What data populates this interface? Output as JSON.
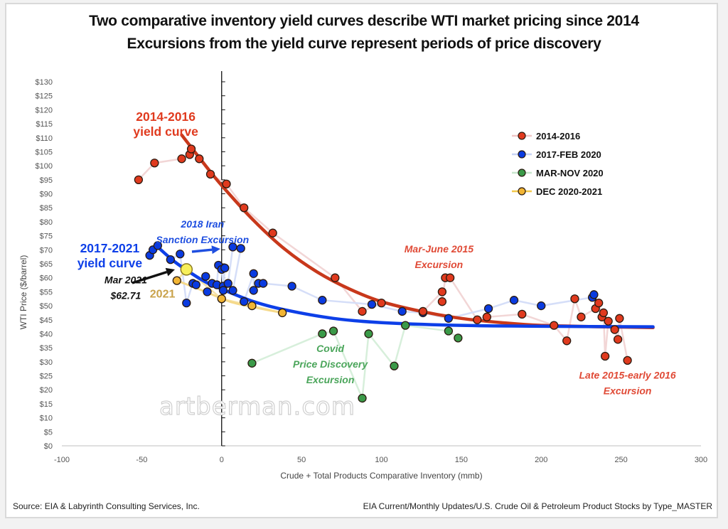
{
  "title": {
    "line1": "Two comparative inventory yield curves describe WTI market pricing since 2014",
    "line2": "Excursions from the yield curve represent periods of price discovery"
  },
  "footer": {
    "source": "Source:  EIA  & Labyrinth Consulting Services, Inc.",
    "file": "EIA Current/Monthly Updates/U.S. Crude Oil & Petroleum Product Stocks by Type_MASTER"
  },
  "watermark": "artberman.com",
  "colors": {
    "red": "#e03a1e",
    "red_curve": "#c8381b",
    "blue": "#0a3be0",
    "blue_curve": "#0d3fe8",
    "green": "#3a9a48",
    "gold": "#f2b534",
    "red_annot": "#e04a36",
    "blue_annot": "#1f4fe0",
    "green_annot": "#4aa55a",
    "gold_annot": "#c9a24a"
  },
  "chart_data": {
    "type": "scatter",
    "xlabel": "Crude + Total Products Comparative Inventory (mmb)",
    "ylabel": "WTI Price ($/barrel)",
    "xlim": [
      -100,
      300
    ],
    "ylim": [
      0,
      130
    ],
    "x_ticks": [
      "-100",
      "-50",
      "0",
      "50",
      "100",
      "150",
      "200",
      "250",
      "300"
    ],
    "y_ticks": [
      "$0",
      "$5",
      "$10",
      "$15",
      "$20",
      "$25",
      "$30",
      "$35",
      "$40",
      "$45",
      "$50",
      "$55",
      "$60",
      "$65",
      "$70",
      "$75",
      "$80",
      "$85",
      "$90",
      "$95",
      "$100",
      "$105",
      "$110",
      "$115",
      "$120",
      "$125",
      "$130"
    ],
    "grid": false,
    "legend_position": "top-right",
    "series": [
      {
        "name": "2014-2016",
        "color_key": "red",
        "points": [
          [
            -52,
            95
          ],
          [
            -42,
            101
          ],
          [
            -25,
            102.5
          ],
          [
            -20,
            104
          ],
          [
            -19,
            106
          ],
          [
            -14,
            102.5
          ],
          [
            -7,
            97
          ],
          [
            3,
            93.5
          ],
          [
            14,
            85
          ],
          [
            32,
            76
          ],
          [
            71,
            60
          ],
          [
            88,
            48
          ],
          [
            100,
            51
          ],
          [
            126,
            48
          ],
          [
            138,
            55
          ],
          [
            138,
            51.5
          ],
          [
            140,
            60
          ],
          [
            143,
            60
          ],
          [
            160,
            45
          ],
          [
            166,
            46
          ],
          [
            188,
            47
          ],
          [
            208,
            43
          ],
          [
            216,
            37.5
          ],
          [
            221,
            52.5
          ],
          [
            225,
            46
          ],
          [
            234,
            49
          ],
          [
            236,
            51
          ],
          [
            238,
            46
          ],
          [
            239,
            47.5
          ],
          [
            240,
            32
          ],
          [
            242,
            44.5
          ],
          [
            246,
            41.5
          ],
          [
            248,
            38
          ],
          [
            249,
            45.5
          ],
          [
            254,
            30.5
          ]
        ]
      },
      {
        "name": "2017-FEB 2020",
        "color_key": "blue",
        "points": [
          [
            -45,
            68
          ],
          [
            -43,
            70
          ],
          [
            -40,
            71.5
          ],
          [
            -32,
            66.5
          ],
          [
            -26,
            68.5
          ],
          [
            -22,
            51
          ],
          [
            -18,
            58
          ],
          [
            -16,
            57.5
          ],
          [
            -10,
            60.5
          ],
          [
            -9,
            55
          ],
          [
            -6,
            58
          ],
          [
            -3,
            57.5
          ],
          [
            -2,
            64.5
          ],
          [
            0,
            63
          ],
          [
            1,
            57
          ],
          [
            2,
            63.5
          ],
          [
            1,
            55.5
          ],
          [
            4,
            58
          ],
          [
            7,
            71
          ],
          [
            12,
            70.5
          ],
          [
            7,
            55.5
          ],
          [
            14,
            51.5
          ],
          [
            20,
            61.5
          ],
          [
            20,
            55.5
          ],
          [
            23,
            58
          ],
          [
            26,
            58
          ],
          [
            44,
            57
          ],
          [
            63,
            52
          ],
          [
            94,
            50.5
          ],
          [
            113,
            48
          ],
          [
            126,
            47.5
          ],
          [
            142,
            45.5
          ],
          [
            167,
            49
          ],
          [
            183,
            52
          ],
          [
            200,
            50
          ],
          [
            232,
            53
          ],
          [
            233,
            54
          ]
        ]
      },
      {
        "name": "MAR-NOV 2020",
        "color_key": "green",
        "points": [
          [
            19,
            29.5
          ],
          [
            63,
            40
          ],
          [
            70,
            41
          ],
          [
            88,
            17
          ],
          [
            92,
            40
          ],
          [
            108,
            28.5
          ],
          [
            115,
            43
          ],
          [
            142,
            41
          ],
          [
            148,
            38.5
          ]
        ]
      },
      {
        "name": "DEC 2020-2021",
        "color_key": "gold",
        "points": [
          [
            -28,
            59
          ],
          [
            -22,
            63
          ],
          [
            0,
            52.5
          ],
          [
            19,
            50
          ],
          [
            38,
            47.5
          ]
        ]
      }
    ],
    "fitted_curves": [
      {
        "name": "2014-2016 yield curve",
        "color_key": "red_curve",
        "points": [
          [
            -25,
            111
          ],
          [
            -10,
            100
          ],
          [
            0,
            93
          ],
          [
            20,
            80.5
          ],
          [
            40,
            70
          ],
          [
            60,
            62
          ],
          [
            80,
            56
          ],
          [
            100,
            51.5
          ],
          [
            125,
            48
          ],
          [
            150,
            45.5
          ],
          [
            175,
            44
          ],
          [
            200,
            43
          ],
          [
            240,
            42.5
          ],
          [
            270,
            42.2
          ]
        ]
      },
      {
        "name": "2017-2021 yield curve",
        "color_key": "blue_curve",
        "points": [
          [
            -40,
            71
          ],
          [
            -30,
            66
          ],
          [
            -20,
            62
          ],
          [
            -10,
            58.5
          ],
          [
            0,
            56
          ],
          [
            20,
            51.5
          ],
          [
            40,
            48.5
          ],
          [
            70,
            45.5
          ],
          [
            100,
            44
          ],
          [
            150,
            43
          ],
          [
            200,
            42.7
          ],
          [
            270,
            42.5
          ]
        ]
      },
      {
        "name": "2021 trend",
        "color_key": "gold",
        "points": [
          [
            -28,
            59
          ],
          [
            -10,
            55
          ],
          [
            5,
            51.5
          ],
          [
            20,
            49.5
          ],
          [
            38,
            47.5
          ]
        ]
      }
    ],
    "annotations": [
      {
        "text": [
          "2014-2016",
          "yield curve"
        ],
        "color_key": "red",
        "x": -35,
        "y": 116,
        "bold": true,
        "italic": false,
        "size": "large"
      },
      {
        "text": [
          "2017-2021",
          "yield curve"
        ],
        "color_key": "blue_curve",
        "x": -70,
        "y": 69,
        "bold": true,
        "italic": false,
        "size": "large"
      },
      {
        "text": [
          "2018 Iran",
          "Sanction Excursion"
        ],
        "color_key": "blue_annot",
        "x": -12,
        "y": 78,
        "bold": true,
        "italic": true,
        "size": "small"
      },
      {
        "text": [
          "Mar 2021",
          "$62.71"
        ],
        "color_key": "black",
        "x": -60,
        "y": 58,
        "bold": true,
        "italic": true,
        "size": "small"
      },
      {
        "text": [
          "2021"
        ],
        "color_key": "gold_annot",
        "x": -37,
        "y": 53,
        "bold": true,
        "italic": false,
        "size": "medium"
      },
      {
        "text": [
          "Mar-June 2015",
          "Excursion"
        ],
        "color_key": "red_annot",
        "x": 136,
        "y": 69,
        "bold": true,
        "italic": true,
        "size": "small"
      },
      {
        "text": [
          "Covid",
          "Price Discovery",
          "Excursion"
        ],
        "color_key": "green_annot",
        "x": 68,
        "y": 33.5,
        "bold": true,
        "italic": true,
        "size": "small"
      },
      {
        "text": [
          "Late 2015-early 2016",
          "Excursion"
        ],
        "color_key": "red_annot",
        "x": 254,
        "y": 24,
        "bold": true,
        "italic": true,
        "size": "small"
      }
    ],
    "highlight": {
      "label": "Mar 2021",
      "value": "$62.71",
      "x": -22,
      "y": 63
    }
  }
}
